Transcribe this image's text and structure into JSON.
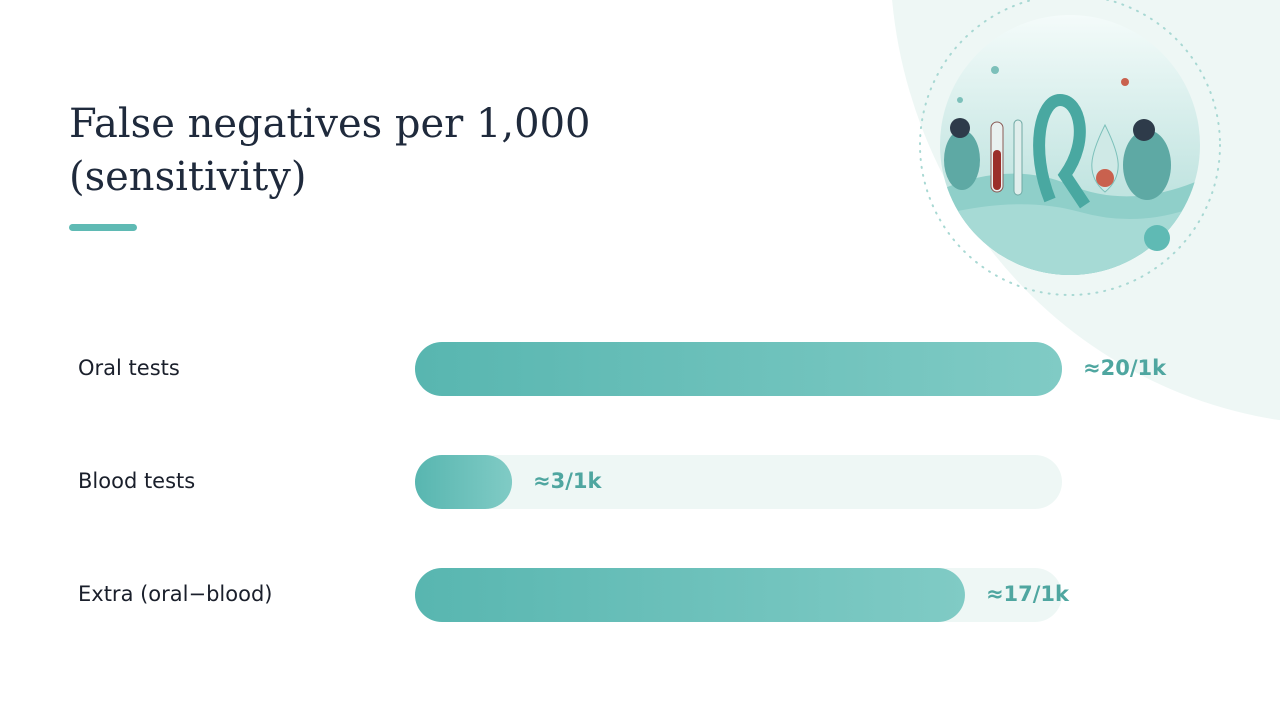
{
  "chart_data": {
    "type": "bar",
    "orientation": "horizontal",
    "title": "False negatives per 1,000 (sensitivity)",
    "categories": [
      "Oral tests",
      "Blood tests",
      "Extra (oral−blood)"
    ],
    "values": [
      20,
      3,
      17
    ],
    "value_labels": [
      "≈20/1k",
      "≈3/1k",
      "≈17/1k"
    ],
    "xlim": [
      0,
      20
    ],
    "color": "#5fbab4"
  }
}
